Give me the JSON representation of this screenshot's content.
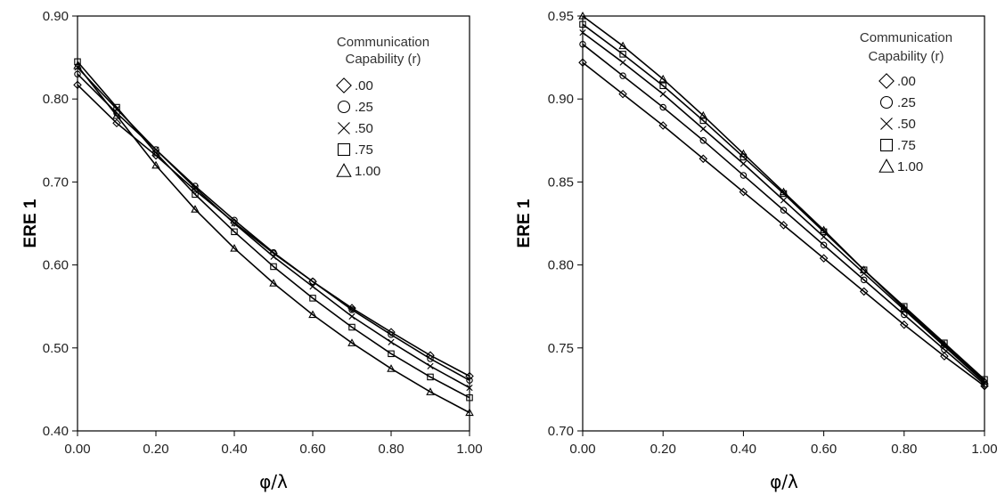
{
  "chart_data": [
    {
      "type": "line",
      "xlabel": "φ/λ",
      "ylabel": "ERE 1",
      "xlim": [
        0,
        1
      ],
      "ylim": [
        0.4,
        0.9
      ],
      "xticks": [
        "0.00",
        "0.20",
        "0.40",
        "0.60",
        "0.80",
        "1.00"
      ],
      "yticks": [
        "0.40",
        "0.50",
        "0.60",
        "0.70",
        "0.80",
        "0.90"
      ],
      "legend": {
        "title_lines": [
          "Communication",
          "Capability (r)"
        ],
        "placement": "top-right"
      },
      "x": [
        0,
        0.1,
        0.2,
        0.3,
        0.4,
        0.5,
        0.6,
        0.7,
        0.8,
        0.9,
        1.0
      ],
      "series": [
        {
          "name": ".00",
          "marker": "diamond",
          "values": [
            0.817,
            0.771,
            0.732,
            0.69,
            0.651,
            0.614,
            0.58,
            0.548,
            0.519,
            0.491,
            0.466
          ]
        },
        {
          "name": ".25",
          "marker": "circle",
          "values": [
            0.83,
            0.783,
            0.739,
            0.695,
            0.654,
            0.615,
            0.58,
            0.546,
            0.516,
            0.487,
            0.461
          ]
        },
        {
          "name": ".50",
          "marker": "x",
          "values": [
            0.838,
            0.788,
            0.739,
            0.693,
            0.65,
            0.61,
            0.574,
            0.538,
            0.507,
            0.478,
            0.452
          ]
        },
        {
          "name": ".75",
          "marker": "square",
          "values": [
            0.845,
            0.79,
            0.735,
            0.685,
            0.64,
            0.598,
            0.56,
            0.525,
            0.493,
            0.465,
            0.44
          ]
        },
        {
          "name": "1.00",
          "marker": "triangle",
          "values": [
            0.84,
            0.78,
            0.72,
            0.667,
            0.62,
            0.578,
            0.54,
            0.506,
            0.475,
            0.447,
            0.422
          ]
        }
      ]
    },
    {
      "type": "line",
      "xlabel": "φ/λ",
      "ylabel": "ERE 1",
      "xlim": [
        0,
        1
      ],
      "ylim": [
        0.7,
        0.95
      ],
      "xticks": [
        "0.00",
        "0.20",
        "0.40",
        "0.60",
        "0.80",
        "1.00"
      ],
      "yticks": [
        "0.70",
        "0.75",
        "0.80",
        "0.85",
        "0.90",
        "0.95"
      ],
      "legend": {
        "title_lines": [
          "Communication",
          "Capability (r)"
        ],
        "placement": "top-right"
      },
      "x": [
        0,
        0.1,
        0.2,
        0.3,
        0.4,
        0.5,
        0.6,
        0.7,
        0.8,
        0.9,
        1.0
      ],
      "series": [
        {
          "name": ".00",
          "marker": "diamond",
          "values": [
            0.922,
            0.903,
            0.884,
            0.864,
            0.844,
            0.824,
            0.804,
            0.784,
            0.764,
            0.745,
            0.727
          ]
        },
        {
          "name": ".25",
          "marker": "circle",
          "values": [
            0.933,
            0.914,
            0.895,
            0.875,
            0.854,
            0.833,
            0.812,
            0.791,
            0.77,
            0.749,
            0.728
          ]
        },
        {
          "name": ".50",
          "marker": "x",
          "values": [
            0.94,
            0.922,
            0.903,
            0.882,
            0.861,
            0.839,
            0.817,
            0.795,
            0.773,
            0.751,
            0.729
          ]
        },
        {
          "name": ".75",
          "marker": "square",
          "values": [
            0.945,
            0.927,
            0.908,
            0.887,
            0.865,
            0.843,
            0.82,
            0.797,
            0.775,
            0.753,
            0.731
          ]
        },
        {
          "name": "1.00",
          "marker": "triangle",
          "values": [
            0.95,
            0.932,
            0.912,
            0.89,
            0.867,
            0.844,
            0.821,
            0.797,
            0.774,
            0.752,
            0.73
          ]
        }
      ]
    }
  ]
}
